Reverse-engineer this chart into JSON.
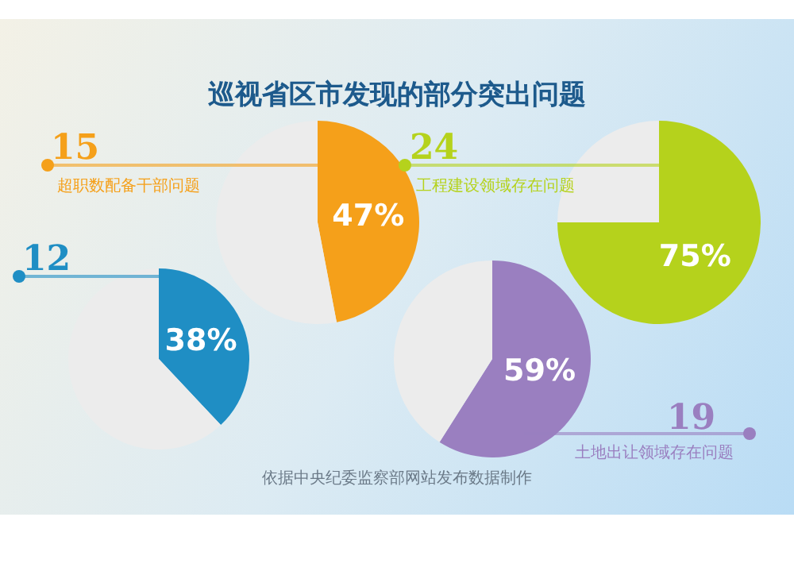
{
  "chart_data": [
    {
      "type": "pie",
      "title": "巡视省区市发现的部分突出问题",
      "categories": [
        "超职数配备干部问题",
        null
      ],
      "values": [
        47,
        53
      ],
      "colors": [
        "#f5a01a",
        "#ececec"
      ],
      "value_labels": [
        "47%",
        null
      ],
      "annotations": [
        "15"
      ]
    },
    {
      "type": "pie",
      "categories": [
        "工程建设领域存在问题",
        null
      ],
      "values": [
        75,
        25
      ],
      "colors": [
        "#b5d21c",
        "#ececec"
      ],
      "value_labels": [
        "75%",
        null
      ],
      "annotations": [
        "24"
      ]
    },
    {
      "type": "pie",
      "categories": [
        null,
        null
      ],
      "values": [
        38,
        62
      ],
      "colors": [
        "#1f8ec4",
        "#ececec"
      ],
      "value_labels": [
        "38%",
        null
      ],
      "annotations": [
        "12"
      ]
    },
    {
      "type": "pie",
      "categories": [
        "土地出让领域存在问题",
        null
      ],
      "values": [
        59,
        41
      ],
      "colors": [
        "#9a7fc0",
        "#ececec"
      ],
      "value_labels": [
        "59%",
        null
      ],
      "annotations": [
        "19",
        "依据中央纪委监察部网站发布数据制作"
      ]
    }
  ]
}
